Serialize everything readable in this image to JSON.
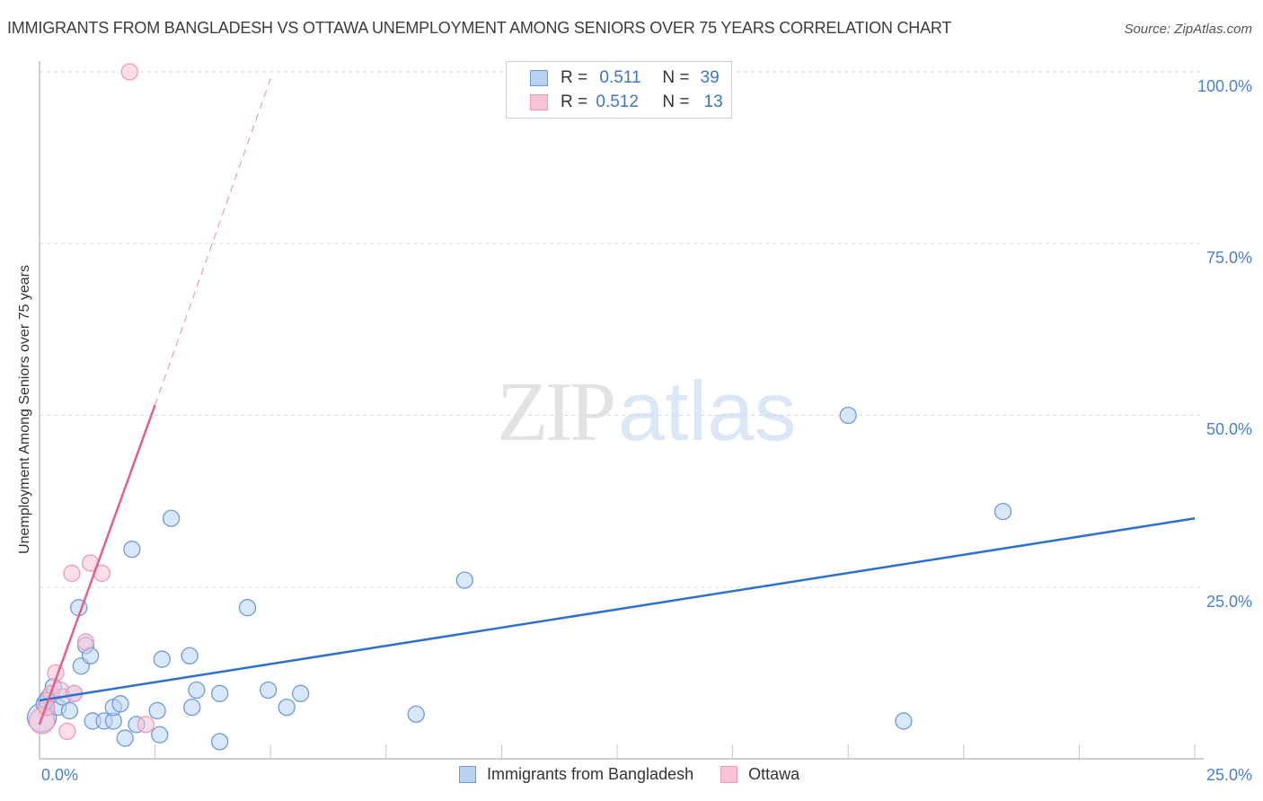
{
  "header": {
    "title": "IMMIGRANTS FROM BANGLADESH VS OTTAWA UNEMPLOYMENT AMONG SENIORS OVER 75 YEARS CORRELATION CHART",
    "source": "Source: ZipAtlas.com"
  },
  "watermark": {
    "zip": "ZIP",
    "atlas": "atlas"
  },
  "legend_stats": [
    {
      "series": "Immigrants from Bangladesh",
      "r_label": "R =",
      "r_value": "0.511",
      "n_label": "N =",
      "n_value": "39",
      "color": "#4a7fd0",
      "fill": "#b9d3f5"
    },
    {
      "series": "Ottawa",
      "r_label": "R =",
      "r_value": "0.512",
      "n_label": "N =",
      "n_value": "13",
      "color": "#e06b95",
      "fill": "#f8c3d4"
    }
  ],
  "axes": {
    "ylabel": "Unemployment Among Seniors over 75 years",
    "y_ticks": [
      "100.0%",
      "75.0%",
      "50.0%",
      "25.0%"
    ],
    "x_ticks": [
      "0.0%",
      "25.0%"
    ]
  },
  "bottom_legend": [
    {
      "label": "Immigrants from Bangladesh",
      "color": "#4a7fd0",
      "fill": "#b9d3f5"
    },
    {
      "label": "Ottawa",
      "color": "#e06b95",
      "fill": "#f8c3d4"
    }
  ],
  "chart_data": {
    "type": "scatter",
    "title": "IMMIGRANTS FROM BANGLADESH VS OTTAWA UNEMPLOYMENT AMONG SENIORS OVER 75 YEARS CORRELATION CHART",
    "xlabel": "Immigrants from Bangladesh",
    "ylabel": "Unemployment Among Seniors over 75 years",
    "xlim": [
      0,
      25
    ],
    "ylim": [
      0,
      100
    ],
    "x_tick_labels": [
      "0.0%",
      "25.0%"
    ],
    "y_tick_labels": [
      "25.0%",
      "50.0%",
      "75.0%",
      "100.0%"
    ],
    "grid": true,
    "legend_position": "top-center",
    "series": [
      {
        "name": "Immigrants from Bangladesh",
        "color": "#4a7fd0",
        "R": 0.511,
        "N": 39,
        "points": [
          [
            0.05,
            6.0
          ],
          [
            0.1,
            8.0
          ],
          [
            0.2,
            9.0
          ],
          [
            0.3,
            10.5
          ],
          [
            0.4,
            7.5
          ],
          [
            0.5,
            9.0
          ],
          [
            0.65,
            7.0
          ],
          [
            0.75,
            9.5
          ],
          [
            0.9,
            13.5
          ],
          [
            1.0,
            16.5
          ],
          [
            1.1,
            15.0
          ],
          [
            0.85,
            22.0
          ],
          [
            1.15,
            5.5
          ],
          [
            1.4,
            5.5
          ],
          [
            1.6,
            5.5
          ],
          [
            1.6,
            7.5
          ],
          [
            1.75,
            8.0
          ],
          [
            1.85,
            3.0
          ],
          [
            2.1,
            5.0
          ],
          [
            2.0,
            30.5
          ],
          [
            2.55,
            7.0
          ],
          [
            2.6,
            3.5
          ],
          [
            2.65,
            14.5
          ],
          [
            2.85,
            35.0
          ],
          [
            3.25,
            15.0
          ],
          [
            3.3,
            7.5
          ],
          [
            3.4,
            10.0
          ],
          [
            3.9,
            9.5
          ],
          [
            3.9,
            2.5
          ],
          [
            4.5,
            22.0
          ],
          [
            4.95,
            10.0
          ],
          [
            5.35,
            7.5
          ],
          [
            5.65,
            9.5
          ],
          [
            8.15,
            6.5
          ],
          [
            9.2,
            26.0
          ],
          [
            17.5,
            50.0
          ],
          [
            18.7,
            5.5
          ],
          [
            20.85,
            36.0
          ],
          [
            0.15,
            8.5
          ]
        ],
        "trendline": {
          "x0": 0,
          "y0": 8.5,
          "x1": 25,
          "y1": 35.0,
          "style": "solid"
        }
      },
      {
        "name": "Ottawa",
        "color": "#e06b95",
        "R": 0.512,
        "N": 13,
        "points": [
          [
            0.05,
            5.5
          ],
          [
            0.15,
            7.5
          ],
          [
            0.25,
            9.5
          ],
          [
            0.35,
            12.5
          ],
          [
            0.45,
            10.0
          ],
          [
            0.6,
            4.0
          ],
          [
            0.7,
            27.0
          ],
          [
            0.75,
            9.5
          ],
          [
            1.0,
            17.0
          ],
          [
            1.1,
            28.5
          ],
          [
            1.35,
            27.0
          ],
          [
            2.3,
            5.0
          ],
          [
            1.95,
            100.0
          ]
        ],
        "trendline": {
          "x0": 0,
          "y0": 5.0,
          "x1": 2.5,
          "y1": 51.5,
          "style": "solid",
          "extension": {
            "x1": 5.0,
            "y1": 99.0,
            "style": "dashed"
          }
        }
      }
    ]
  }
}
